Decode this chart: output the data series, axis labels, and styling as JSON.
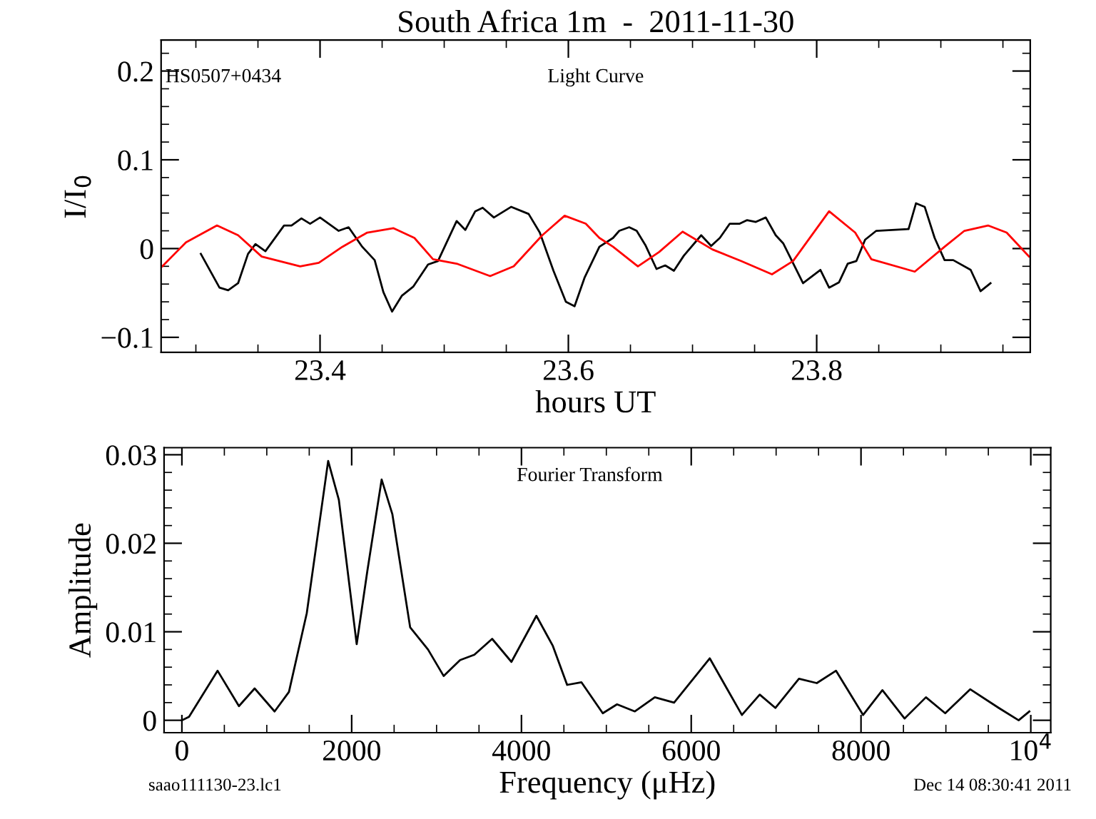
{
  "chart_data": [
    {
      "type": "line",
      "title": "South Africa 1m  -  2011-11-30",
      "xlabel": "hours UT",
      "ylabel": "I/I$_{0}$",
      "annotations": [
        "HS0507+0434",
        "Light Curve"
      ],
      "xlim": [
        23.272,
        23.972
      ],
      "ylim": [
        -0.117,
        0.235
      ],
      "xticks": [
        {
          "value": 23.3,
          "label": null
        },
        {
          "value": 23.35,
          "label": null
        },
        23.4,
        {
          "value": 23.45,
          "label": null
        },
        {
          "value": 23.5,
          "label": null
        },
        {
          "value": 23.55,
          "label": null
        },
        23.6,
        {
          "value": 23.65,
          "label": null
        },
        {
          "value": 23.7,
          "label": null
        },
        {
          "value": 23.75,
          "label": null
        },
        23.8,
        {
          "value": 23.85,
          "label": null
        },
        {
          "value": 23.9,
          "label": null
        },
        {
          "value": 23.95,
          "label": null
        }
      ],
      "yticks": [
        {
          "value": -0.1,
          "label": "−0.1"
        },
        {
          "value": -0.08,
          "label": null
        },
        {
          "value": -0.06,
          "label": null
        },
        {
          "value": -0.04,
          "label": null
        },
        {
          "value": -0.02,
          "label": null
        },
        0,
        {
          "value": 0.02,
          "label": null
        },
        {
          "value": 0.04,
          "label": null
        },
        {
          "value": 0.06,
          "label": null
        },
        {
          "value": 0.08,
          "label": null
        },
        0.1,
        {
          "value": 0.12,
          "label": null
        },
        {
          "value": 0.14,
          "label": null
        },
        {
          "value": 0.16,
          "label": null
        },
        {
          "value": 0.18,
          "label": null
        },
        0.2,
        {
          "value": 0.22,
          "label": null
        }
      ],
      "grid": false,
      "legend": false,
      "marker": "none",
      "line_style": "solid",
      "series": [
        {
          "color": "#000000",
          "x": [
            23.304,
            23.319,
            23.326,
            23.334,
            23.342,
            23.348,
            23.356,
            23.371,
            23.377,
            23.385,
            23.392,
            23.4,
            23.415,
            23.423,
            23.434,
            23.444,
            23.451,
            23.458,
            23.466,
            23.475,
            23.487,
            23.495,
            23.51,
            23.517,
            23.525,
            23.531,
            23.54,
            23.554,
            23.568,
            23.577,
            23.588,
            23.598,
            23.605,
            23.613,
            23.625,
            23.636,
            23.641,
            23.649,
            23.655,
            23.662,
            23.671,
            23.678,
            23.685,
            23.693,
            23.707,
            23.715,
            23.722,
            23.73,
            23.738,
            23.744,
            23.751,
            23.759,
            23.767,
            23.773,
            23.789,
            23.803,
            23.81,
            23.818,
            23.825,
            23.832,
            23.839,
            23.848,
            23.874,
            23.88,
            23.887,
            23.895,
            23.903,
            23.91,
            23.924,
            23.932,
            23.94
          ],
          "values": [
            -0.006,
            -0.044,
            -0.047,
            -0.039,
            -0.006,
            0.005,
            -0.003,
            0.026,
            0.026,
            0.034,
            0.028,
            0.035,
            0.02,
            0.024,
            0.002,
            -0.013,
            -0.049,
            -0.071,
            -0.053,
            -0.043,
            -0.018,
            -0.014,
            0.031,
            0.021,
            0.042,
            0.046,
            0.035,
            0.047,
            0.039,
            0.018,
            -0.025,
            -0.06,
            -0.065,
            -0.033,
            0.002,
            0.012,
            0.02,
            0.024,
            0.02,
            0.004,
            -0.023,
            -0.019,
            -0.025,
            -0.008,
            0.015,
            0.003,
            0.012,
            0.028,
            0.028,
            0.032,
            0.03,
            0.035,
            0.015,
            0.006,
            -0.039,
            -0.024,
            -0.044,
            -0.038,
            -0.017,
            -0.014,
            0.01,
            0.02,
            0.022,
            0.051,
            0.047,
            0.012,
            -0.013,
            -0.013,
            -0.024,
            -0.048,
            -0.039
          ]
        },
        {
          "color": "#ff0000",
          "x": [
            23.273,
            23.292,
            23.317,
            23.334,
            23.353,
            23.384,
            23.399,
            23.418,
            23.438,
            23.459,
            23.476,
            23.491,
            23.51,
            23.537,
            23.556,
            23.579,
            23.597,
            23.614,
            23.625,
            23.636,
            23.656,
            23.673,
            23.692,
            23.716,
            23.739,
            23.764,
            23.781,
            23.81,
            23.831,
            23.844,
            23.879,
            23.903,
            23.919,
            23.938,
            23.953,
            23.971
          ],
          "values": [
            -0.02,
            0.007,
            0.026,
            0.015,
            -0.009,
            -0.02,
            -0.016,
            0.002,
            0.018,
            0.023,
            0.012,
            -0.012,
            -0.017,
            -0.031,
            -0.02,
            0.015,
            0.037,
            0.028,
            0.012,
            0.002,
            -0.02,
            -0.004,
            0.019,
            -0.001,
            -0.014,
            -0.029,
            -0.014,
            0.042,
            0.018,
            -0.012,
            -0.026,
            0.002,
            0.02,
            0.026,
            0.018,
            -0.009
          ]
        }
      ]
    },
    {
      "type": "line",
      "xlabel": "Frequency (μHz)",
      "ylabel": "Amplitude",
      "annotations": [
        "Fourier Transform",
        "saao111130-23.lc1",
        "Dec 14 08:30:41 2011"
      ],
      "xlim": [
        -210,
        10235
      ],
      "ylim": [
        -0.0014,
        0.0308
      ],
      "xticks": [
        0,
        {
          "value": 500,
          "label": null
        },
        {
          "value": 1000,
          "label": null
        },
        {
          "value": 1500,
          "label": null
        },
        2000,
        {
          "value": 2500,
          "label": null
        },
        {
          "value": 3000,
          "label": null
        },
        {
          "value": 3500,
          "label": null
        },
        4000,
        {
          "value": 4500,
          "label": null
        },
        {
          "value": 5000,
          "label": null
        },
        {
          "value": 5500,
          "label": null
        },
        6000,
        {
          "value": 6500,
          "label": null
        },
        {
          "value": 7000,
          "label": null
        },
        {
          "value": 7500,
          "label": null
        },
        8000,
        {
          "value": 8500,
          "label": null
        },
        {
          "value": 9000,
          "label": null
        },
        {
          "value": 9500,
          "label": null
        },
        {
          "value": 10000,
          "label": "10$^{4}$"
        }
      ],
      "yticks": [
        0,
        {
          "value": 0.002,
          "label": null
        },
        {
          "value": 0.004,
          "label": null
        },
        {
          "value": 0.006,
          "label": null
        },
        {
          "value": 0.008,
          "label": null
        },
        0.01,
        {
          "value": 0.012,
          "label": null
        },
        {
          "value": 0.014,
          "label": null
        },
        {
          "value": 0.016,
          "label": null
        },
        {
          "value": 0.018,
          "label": null
        },
        0.02,
        {
          "value": 0.022,
          "label": null
        },
        {
          "value": 0.024,
          "label": null
        },
        {
          "value": 0.026,
          "label": null
        },
        {
          "value": 0.028,
          "label": null
        },
        0.03
      ],
      "grid": false,
      "legend": false,
      "marker": "none",
      "line_style": "solid",
      "series": [
        {
          "color": "#000000",
          "x": [
            0,
            84,
            420,
            672,
            857,
            1092,
            1261,
            1471,
            1723,
            1849,
            2059,
            2185,
            2353,
            2479,
            2689,
            2899,
            3084,
            3277,
            3445,
            3655,
            3882,
            4176,
            4370,
            4538,
            4706,
            4958,
            5126,
            5336,
            5571,
            5798,
            6218,
            6597,
            6807,
            6991,
            7269,
            7479,
            7706,
            8025,
            8252,
            8513,
            8765,
            8992,
            9286,
            9622,
            9857,
            9983
          ],
          "values": [
            0,
            0.0004,
            0.0056,
            0.0016,
            0.0036,
            0.001,
            0.0032,
            0.0121,
            0.0293,
            0.0249,
            0.0086,
            0.0169,
            0.0272,
            0.0233,
            0.0105,
            0.008,
            0.005,
            0.0068,
            0.0074,
            0.0092,
            0.0066,
            0.0118,
            0.0084,
            0.004,
            0.0043,
            0.0008,
            0.0018,
            0.001,
            0.0026,
            0.002,
            0.007,
            0.0006,
            0.0029,
            0.0014,
            0.0047,
            0.0042,
            0.0056,
            0.0006,
            0.0034,
            0.0002,
            0.0026,
            0.0008,
            0.0035,
            0.0014,
            0.0,
            0.001
          ]
        }
      ]
    }
  ]
}
